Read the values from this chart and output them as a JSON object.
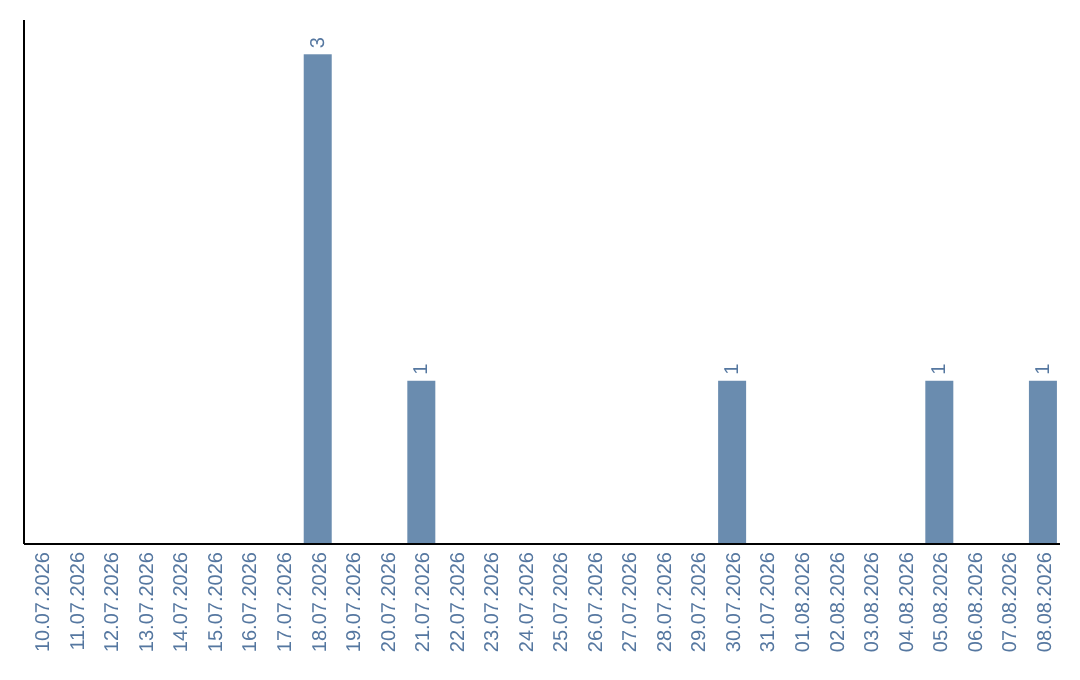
{
  "chart_data": {
    "type": "bar",
    "tick_labels": "x",
    "grid": false,
    "legend": false,
    "categories": [
      "10.07.2026",
      "11.07.2026",
      "12.07.2026",
      "13.07.2026",
      "14.07.2026",
      "15.07.2026",
      "16.07.2026",
      "17.07.2026",
      "18.07.2026",
      "19.07.2026",
      "20.07.2026",
      "21.07.2026",
      "22.07.2026",
      "23.07.2026",
      "24.07.2026",
      "25.07.2026",
      "26.07.2026",
      "27.07.2026",
      "28.07.2026",
      "29.07.2026",
      "30.07.2026",
      "31.07.2026",
      "01.08.2026",
      "02.08.2026",
      "03.08.2026",
      "04.08.2026",
      "05.08.2026",
      "06.08.2026",
      "07.08.2026",
      "08.08.2026"
    ],
    "values": [
      0,
      0,
      0,
      0,
      0,
      0,
      0,
      0,
      3,
      0,
      0,
      1,
      0,
      0,
      0,
      0,
      0,
      0,
      0,
      0,
      1,
      0,
      0,
      0,
      0,
      0,
      1,
      0,
      0,
      1
    ],
    "value_labels": [
      null,
      null,
      null,
      null,
      null,
      null,
      null,
      null,
      "3",
      null,
      null,
      "1",
      null,
      null,
      null,
      null,
      null,
      null,
      null,
      null,
      "1",
      null,
      null,
      null,
      null,
      null,
      "1",
      null,
      null,
      "1"
    ],
    "color": "#6a8caf"
  }
}
